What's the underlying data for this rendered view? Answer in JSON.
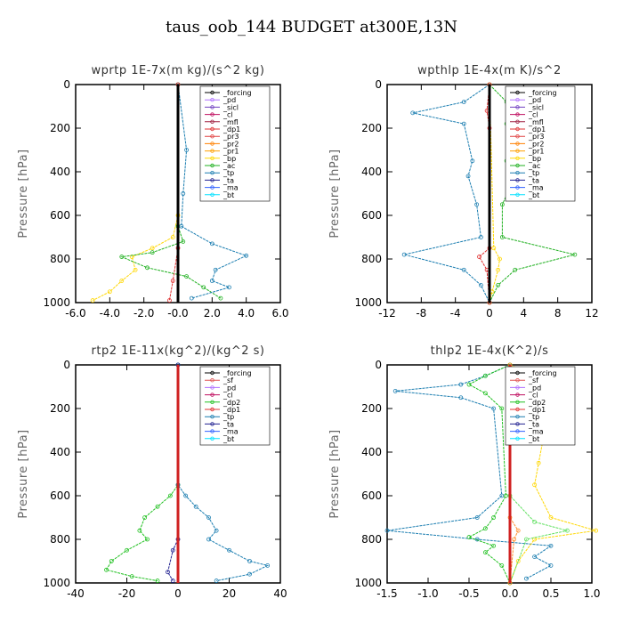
{
  "title": "taus_oob_144  BUDGET at300E,13N",
  "chart_data": [
    {
      "type": "line",
      "title": "wprtp   1E-7x(m kg)/(s^2 kg)",
      "ylabel": "Pressure [hPa]",
      "xlim": [
        -6,
        6
      ],
      "ylim": [
        0,
        1000
      ],
      "y_inverted": true,
      "xticks": [
        "-6.0",
        "-4.0",
        "-2.0",
        "-0.0",
        "2.0",
        "4.0",
        "6.0"
      ],
      "yticks": [
        "0",
        "200",
        "400",
        "600",
        "800",
        "1000"
      ],
      "legend": [
        "_forcing",
        "_pd",
        "_sicl",
        "_cl",
        "_mfl",
        "_dp1",
        "_pr3",
        "_pr2",
        "_pr1",
        "_bp",
        "_ac",
        "_tp",
        "_ta",
        "_ma",
        "_bt"
      ],
      "series": [
        {
          "name": "_bp",
          "color": "#ffd700",
          "points": [
            [
              0,
              0
            ],
            [
              0,
              600
            ],
            [
              -0.3,
              700
            ],
            [
              -1.5,
              750
            ],
            [
              -2.7,
              790
            ],
            [
              -2.5,
              850
            ],
            [
              -3.3,
              900
            ],
            [
              -4.0,
              950
            ],
            [
              -5.0,
              990
            ]
          ]
        },
        {
          "name": "_ac",
          "color": "#20b020",
          "points": [
            [
              0,
              0
            ],
            [
              0,
              650
            ],
            [
              0.3,
              720
            ],
            [
              -1.5,
              770
            ],
            [
              -3.3,
              790
            ],
            [
              -1.8,
              840
            ],
            [
              0.5,
              880
            ],
            [
              1.5,
              930
            ],
            [
              2.5,
              980
            ]
          ]
        },
        {
          "name": "_tp",
          "color": "#1a7db0",
          "points": [
            [
              0,
              0
            ],
            [
              0.5,
              300
            ],
            [
              0.3,
              500
            ],
            [
              0.2,
              650
            ],
            [
              2.0,
              730
            ],
            [
              4.0,
              785
            ],
            [
              2.2,
              850
            ],
            [
              2.0,
              900
            ],
            [
              3.0,
              930
            ],
            [
              0.8,
              980
            ]
          ]
        },
        {
          "name": "_dp1",
          "color": "#e03030",
          "points": [
            [
              0,
              0
            ],
            [
              0,
              750
            ],
            [
              -0.3,
              900
            ],
            [
              -0.5,
              990
            ]
          ]
        },
        {
          "name": "_forcing",
          "color": "#000000",
          "points": [
            [
              0,
              0
            ],
            [
              0,
              1000
            ]
          ]
        }
      ]
    },
    {
      "type": "line",
      "title": "wpthlp   1E-4x(m K)/s^2",
      "ylabel": "Pressure [hPa]",
      "xlim": [
        -12,
        12
      ],
      "ylim": [
        0,
        1000
      ],
      "y_inverted": true,
      "xticks": [
        "-12",
        "-8",
        "-4",
        "0",
        "4",
        "8",
        "12"
      ],
      "yticks": [
        "0",
        "200",
        "400",
        "600",
        "800",
        "1000"
      ],
      "legend": [
        "_forcing",
        "_pd",
        "_sicl",
        "_cl",
        "_mfl",
        "_dp1",
        "_pr3",
        "_pr2",
        "_pr1",
        "_bp",
        "_ac",
        "_tp",
        "_ta",
        "_ma",
        "_bt"
      ],
      "series": [
        {
          "name": "_tp",
          "color": "#1a7db0",
          "points": [
            [
              0,
              0
            ],
            [
              -3,
              80
            ],
            [
              -9,
              130
            ],
            [
              -3,
              180
            ],
            [
              -2,
              350
            ],
            [
              -2.5,
              420
            ],
            [
              -1.5,
              550
            ],
            [
              -1,
              700
            ],
            [
              -10,
              780
            ],
            [
              -3,
              850
            ],
            [
              -1,
              920
            ],
            [
              0,
              1000
            ]
          ]
        },
        {
          "name": "_ac",
          "color": "#20b020",
          "points": [
            [
              0,
              0
            ],
            [
              2,
              80
            ],
            [
              8,
              130
            ],
            [
              2,
              180
            ],
            [
              2,
              350
            ],
            [
              3,
              420
            ],
            [
              1.5,
              550
            ],
            [
              1.5,
              700
            ],
            [
              10,
              780
            ],
            [
              3,
              850
            ],
            [
              1,
              920
            ],
            [
              0,
              1000
            ]
          ]
        },
        {
          "name": "_bp",
          "color": "#ffd700",
          "points": [
            [
              0,
              0
            ],
            [
              0.5,
              750
            ],
            [
              1.2,
              800
            ],
            [
              1.0,
              850
            ],
            [
              0.3,
              950
            ],
            [
              0,
              1000
            ]
          ]
        },
        {
          "name": "_dp1",
          "color": "#e03030",
          "points": [
            [
              0,
              0
            ],
            [
              -0.3,
              120
            ],
            [
              0,
              200
            ],
            [
              0,
              750
            ],
            [
              -1.2,
              790
            ],
            [
              -0.3,
              850
            ],
            [
              0,
              1000
            ]
          ]
        },
        {
          "name": "_forcing",
          "color": "#000000",
          "points": [
            [
              0,
              0
            ],
            [
              0,
              1000
            ]
          ]
        }
      ]
    },
    {
      "type": "line",
      "title": "rtp2   1E-11x(kg^2)/(kg^2 s)",
      "ylabel": "Pressure [hPa]",
      "xlim": [
        -40,
        40
      ],
      "ylim": [
        0,
        1000
      ],
      "y_inverted": true,
      "xticks": [
        "-40",
        "-20",
        "0",
        "20",
        "40"
      ],
      "yticks": [
        "0",
        "200",
        "400",
        "600",
        "800",
        "1000"
      ],
      "legend": [
        "_forcing",
        "_sf",
        "_pd",
        "_cl",
        "_dp2",
        "_dp1",
        "_tp",
        "_ta",
        "_ma",
        "_bt"
      ],
      "series": [
        {
          "name": "_dp2",
          "color": "#20c020",
          "points": [
            [
              0,
              0
            ],
            [
              0,
              550
            ],
            [
              -3,
              600
            ],
            [
              -8,
              650
            ],
            [
              -13,
              700
            ],
            [
              -15,
              760
            ],
            [
              -12,
              800
            ],
            [
              -20,
              850
            ],
            [
              -26,
              900
            ],
            [
              -28,
              940
            ],
            [
              -18,
              970
            ],
            [
              -8,
              990
            ]
          ]
        },
        {
          "name": "_tp",
          "color": "#1a7db0",
          "points": [
            [
              0,
              0
            ],
            [
              0,
              550
            ],
            [
              3,
              600
            ],
            [
              7,
              650
            ],
            [
              12,
              700
            ],
            [
              15,
              760
            ],
            [
              12,
              800
            ],
            [
              20,
              850
            ],
            [
              28,
              900
            ],
            [
              35,
              920
            ],
            [
              28,
              960
            ],
            [
              15,
              990
            ]
          ]
        },
        {
          "name": "_ta",
          "color": "#202090",
          "points": [
            [
              0,
              0
            ],
            [
              0,
              800
            ],
            [
              -2,
              850
            ],
            [
              -4,
              950
            ],
            [
              -2,
              990
            ]
          ]
        },
        {
          "name": "_forcing",
          "color": "#d02020",
          "points": [
            [
              0,
              0
            ],
            [
              0,
              1000
            ]
          ]
        }
      ]
    },
    {
      "type": "line",
      "title": "thlp2   1E-4x(K^2)/s",
      "ylabel": "Pressure [hPa]",
      "xlim": [
        -1.5,
        1.0
      ],
      "ylim": [
        0,
        1000
      ],
      "y_inverted": true,
      "xticks": [
        "-1.5",
        "-1.0",
        "-0.5",
        "0.0",
        "0.5",
        "1.0"
      ],
      "yticks": [
        "0",
        "200",
        "400",
        "600",
        "800",
        "1000"
      ],
      "legend": [
        "_forcing",
        "_sf",
        "_pd",
        "_cl",
        "_dp2",
        "_dp1",
        "_tp",
        "_ta",
        "_ma",
        "_bt"
      ],
      "series": [
        {
          "name": "_tp",
          "color": "#1a7db0",
          "points": [
            [
              0,
              0
            ],
            [
              -0.3,
              50
            ],
            [
              -0.6,
              90
            ],
            [
              -1.4,
              120
            ],
            [
              -0.6,
              150
            ],
            [
              -0.2,
              200
            ],
            [
              -0.1,
              600
            ],
            [
              -0.4,
              700
            ],
            [
              -1.5,
              760
            ],
            [
              -0.4,
              800
            ],
            [
              0.5,
              830
            ],
            [
              0.3,
              880
            ],
            [
              0.5,
              920
            ],
            [
              0.2,
              980
            ]
          ]
        },
        {
          "name": "_pd",
          "color": "#ffd700",
          "points": [
            [
              0,
              0
            ],
            [
              0.5,
              80
            ],
            [
              0.7,
              120
            ],
            [
              0.5,
              150
            ],
            [
              0.4,
              250
            ],
            [
              0.4,
              350
            ],
            [
              0.35,
              450
            ],
            [
              0.3,
              550
            ],
            [
              0.5,
              700
            ],
            [
              1.05,
              760
            ],
            [
              0.3,
              800
            ],
            [
              0.1,
              900
            ],
            [
              0,
              1000
            ]
          ]
        },
        {
          "name": "_dp2",
          "color": "#20c020",
          "points": [
            [
              0,
              0
            ],
            [
              -0.3,
              50
            ],
            [
              -0.5,
              90
            ],
            [
              -0.3,
              130
            ],
            [
              -0.1,
              200
            ],
            [
              -0.05,
              600
            ],
            [
              -0.2,
              700
            ],
            [
              -0.3,
              750
            ],
            [
              -0.5,
              790
            ],
            [
              -0.2,
              830
            ],
            [
              -0.3,
              860
            ],
            [
              -0.1,
              920
            ],
            [
              0,
              1000
            ]
          ]
        },
        {
          "name": "_dp1",
          "color": "#60e060",
          "points": [
            [
              0,
              0
            ],
            [
              0,
              600
            ],
            [
              0.3,
              720
            ],
            [
              0.7,
              760
            ],
            [
              0.2,
              800
            ],
            [
              0,
              1000
            ]
          ]
        },
        {
          "name": "_cl",
          "color": "#ff9030",
          "points": [
            [
              0,
              0
            ],
            [
              0,
              700
            ],
            [
              0.1,
              760
            ],
            [
              0.05,
              800
            ],
            [
              0,
              1000
            ]
          ]
        },
        {
          "name": "_forcing",
          "color": "#d02020",
          "points": [
            [
              0,
              0
            ],
            [
              0,
              1000
            ]
          ]
        }
      ]
    }
  ]
}
